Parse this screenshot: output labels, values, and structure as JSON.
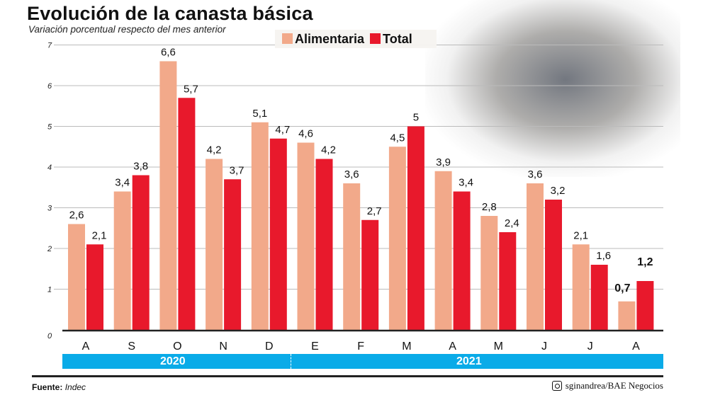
{
  "chart_data": {
    "type": "bar",
    "title": "Evolución de la canasta básica",
    "subtitle": "Variación porcentual respecto del mes anterior",
    "categories": [
      "A",
      "S",
      "O",
      "N",
      "D",
      "E",
      "F",
      "M",
      "A",
      "M",
      "J",
      "J",
      "A"
    ],
    "year_groups": [
      {
        "label": "2020",
        "months": 5
      },
      {
        "label": "2021",
        "months": 8
      }
    ],
    "series": [
      {
        "name": "Alimentaria",
        "color": "#F2A98A",
        "values": [
          2.6,
          3.4,
          6.6,
          4.2,
          5.1,
          4.6,
          3.6,
          4.5,
          3.9,
          2.8,
          3.6,
          2.1,
          0.7
        ],
        "labels": [
          "2,6",
          "3,4",
          "6,6",
          "4,2",
          "5,1",
          "4,6",
          "3,6",
          "4,5",
          "3,9",
          "2,8",
          "3,6",
          "2,1",
          "0,7"
        ]
      },
      {
        "name": "Total",
        "color": "#E8192C",
        "values": [
          2.1,
          3.8,
          5.7,
          3.7,
          4.7,
          4.2,
          2.7,
          5.0,
          3.4,
          2.4,
          3.2,
          1.6,
          1.2
        ],
        "labels": [
          "2,1",
          "3,8",
          "5,7",
          "3,7",
          "4,7",
          "4,2",
          "2,7",
          "5",
          "3,4",
          "2,4",
          "3,2",
          "1,6",
          "1,2"
        ]
      }
    ],
    "yticks": [
      "0",
      "1",
      "2",
      "3",
      "4",
      "5",
      "6",
      "7"
    ],
    "ylim": [
      0,
      7
    ],
    "grid": true,
    "legend": "top-center",
    "year_bar_color": "#0AABE8"
  },
  "footer": {
    "source_label": "Fuente:",
    "source": "Indec",
    "credit": "sginandrea/BAE Negocios",
    "credit_icon": "instagram-icon"
  }
}
